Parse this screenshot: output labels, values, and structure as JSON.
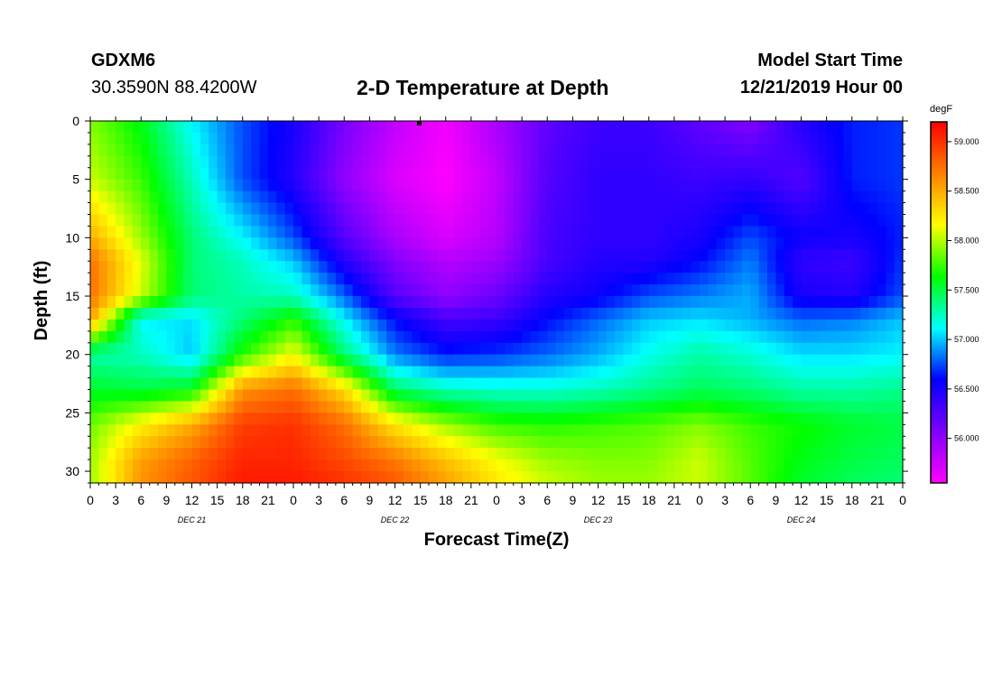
{
  "header": {
    "station": "GDXM6",
    "coords": "30.3590N 88.4200W",
    "title": "2-D Temperature at Depth",
    "model_start_label": "Model Start Time",
    "model_start_value": "12/21/2019 Hour 00"
  },
  "chart_data": {
    "type": "heatmap",
    "title": "2-D Temperature at Depth",
    "xlabel": "Forecast Time(Z)",
    "ylabel": "Depth (ft)",
    "x_tick_labels": [
      "0",
      "3",
      "6",
      "9",
      "12",
      "15",
      "18",
      "21",
      "0",
      "3",
      "6",
      "9",
      "12",
      "15",
      "18",
      "21",
      "0",
      "3",
      "6",
      "9",
      "12",
      "15",
      "18",
      "21",
      "0",
      "3",
      "6",
      "9",
      "12",
      "15",
      "18",
      "21",
      "0"
    ],
    "x_day_labels": [
      "DEC 21",
      "DEC 22",
      "DEC 23",
      "DEC 24"
    ],
    "x_range_hours": [
      0,
      96
    ],
    "y_range": [
      0,
      31
    ],
    "y_reversed": true,
    "y_ticks": [
      0,
      5,
      10,
      15,
      20,
      25,
      30
    ],
    "colorbar": {
      "units": "degF",
      "range": [
        55.55,
        59.2
      ],
      "ticks": [
        59.0,
        58.5,
        58.0,
        57.5,
        57.0,
        56.5,
        56.0
      ],
      "tick_labels": [
        "59.000",
        "58.500",
        "58.000",
        "57.500",
        "57.000",
        "56.500",
        "56.000"
      ],
      "colors": [
        "#ff00ff",
        "#7f00ff",
        "#0000ff",
        "#00ffff",
        "#00ff00",
        "#ffff00",
        "#ff8000",
        "#ff0000"
      ]
    },
    "depths_ft": [
      0,
      5,
      10,
      12,
      15,
      17,
      20,
      23,
      26,
      29,
      31
    ],
    "times_h": [
      0,
      6,
      12,
      18,
      24,
      30,
      36,
      42,
      48,
      54,
      60,
      66,
      72,
      78,
      84,
      90,
      96
    ],
    "values_degF": [
      [
        57.9,
        57.6,
        57.1,
        56.75,
        56.5,
        56.1,
        55.8,
        55.6,
        55.9,
        56.2,
        56.35,
        56.35,
        56.2,
        56.05,
        56.45,
        56.65,
        56.7
      ],
      [
        58.05,
        57.75,
        57.25,
        56.75,
        56.45,
        56.0,
        55.7,
        55.55,
        55.8,
        56.25,
        56.4,
        56.4,
        56.35,
        56.4,
        56.25,
        56.65,
        56.7
      ],
      [
        58.5,
        57.95,
        57.4,
        57.1,
        56.75,
        56.25,
        55.9,
        55.7,
        55.85,
        56.3,
        56.4,
        56.4,
        56.5,
        56.75,
        56.55,
        56.5,
        56.65
      ],
      [
        58.75,
        58.1,
        57.4,
        57.25,
        57.0,
        56.45,
        56.05,
        55.85,
        55.95,
        56.3,
        56.45,
        56.45,
        56.6,
        56.85,
        56.4,
        56.35,
        56.7
      ],
      [
        58.75,
        58.05,
        57.4,
        57.3,
        57.25,
        56.8,
        56.25,
        56.0,
        56.15,
        56.45,
        56.55,
        56.75,
        56.85,
        56.95,
        56.5,
        56.45,
        56.75
      ],
      [
        58.55,
        57.1,
        57.05,
        57.4,
        57.7,
        57.1,
        56.6,
        56.3,
        56.35,
        56.6,
        56.8,
        57.0,
        57.05,
        56.95,
        56.8,
        56.85,
        57.0
      ],
      [
        57.3,
        57.25,
        57.0,
        57.7,
        58.15,
        57.4,
        56.85,
        56.65,
        56.7,
        56.8,
        56.95,
        57.15,
        57.3,
        57.2,
        57.05,
        57.05,
        57.1
      ],
      [
        57.55,
        57.5,
        57.6,
        58.6,
        58.75,
        58.3,
        57.45,
        57.25,
        57.2,
        57.2,
        57.25,
        57.35,
        57.45,
        57.4,
        57.3,
        57.3,
        57.35
      ],
      [
        57.85,
        58.2,
        58.5,
        58.95,
        59.0,
        58.75,
        58.25,
        57.95,
        57.75,
        57.7,
        57.75,
        57.8,
        57.9,
        57.75,
        57.65,
        57.55,
        57.5
      ],
      [
        57.95,
        58.55,
        58.8,
        59.05,
        59.05,
        58.9,
        58.7,
        58.4,
        58.15,
        57.95,
        57.9,
        57.9,
        58.05,
        57.8,
        57.6,
        57.5,
        57.45
      ],
      [
        57.95,
        58.6,
        58.85,
        59.1,
        59.1,
        59.0,
        58.85,
        58.55,
        58.25,
        58.05,
        57.95,
        57.95,
        58.05,
        57.8,
        57.55,
        57.45,
        57.4
      ]
    ]
  }
}
